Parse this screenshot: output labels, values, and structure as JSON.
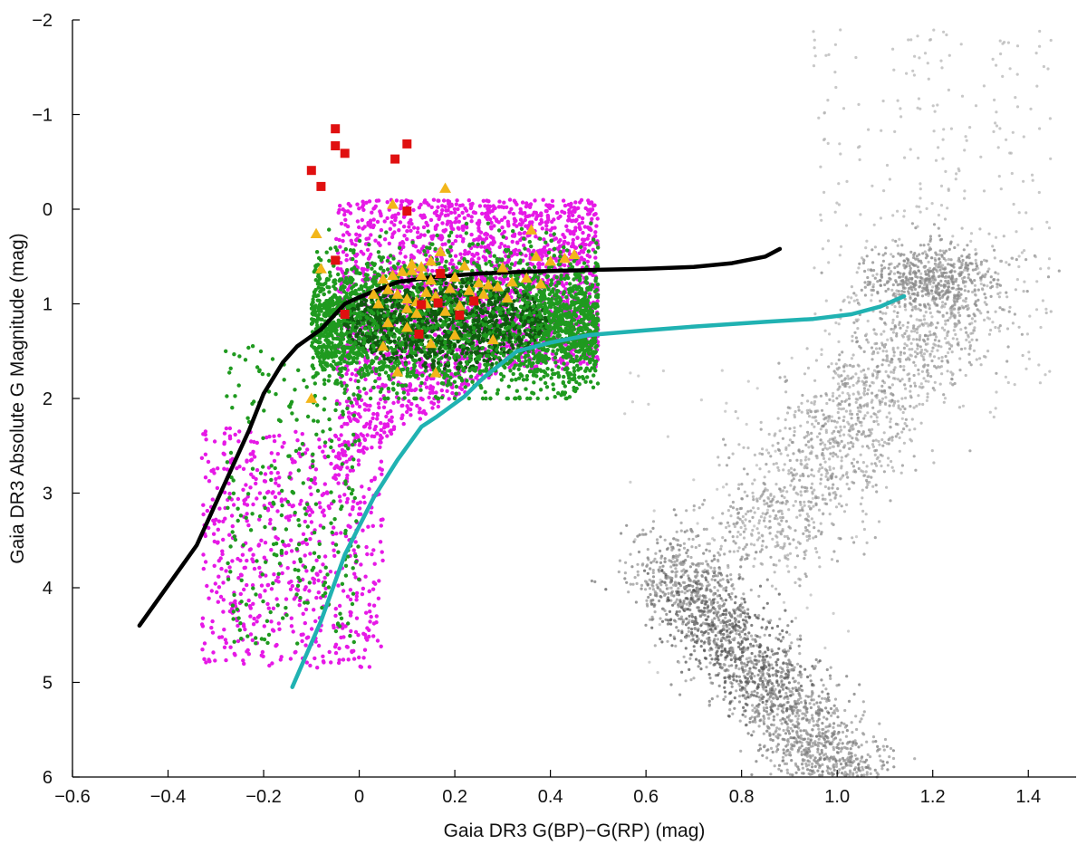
{
  "chart_data": {
    "type": "scatter",
    "title": "",
    "xlabel": "Gaia DR3 G(BP)−G(RP) (mag)",
    "ylabel": "Gaia DR3 Absolute G Magnitude (mag)",
    "xlim": [
      -0.6,
      1.5
    ],
    "ylim": [
      -2,
      6
    ],
    "y_inverted": true,
    "grid": false,
    "legend": "none",
    "x_ticks": [
      "−0.6",
      "−0.4",
      "−0.2",
      "0",
      "0.2",
      "0.4",
      "0.6",
      "0.8",
      "1.0",
      "1.2",
      "1.4"
    ],
    "x_tick_values": [
      -0.6,
      -0.4,
      -0.2,
      0,
      0.2,
      0.4,
      0.6,
      0.8,
      1.0,
      1.2,
      1.4
    ],
    "y_ticks": [
      "−2",
      "−1",
      "0",
      "1",
      "2",
      "3",
      "4",
      "5",
      "6"
    ],
    "y_tick_values": [
      -2,
      -1,
      0,
      1,
      2,
      3,
      4,
      5,
      6
    ],
    "colors": {
      "background_stars": "#9a9a9a",
      "magenta_points": "#e619e6",
      "green_points": "#1f9a1f",
      "green_dense": "#0e5a0e",
      "triangles": "#f2b61a",
      "squares": "#e01010",
      "black_line": "#000000",
      "cyan_line": "#20b2b2"
    },
    "series": [
      {
        "marker": "square",
        "color": "#e01010",
        "x": [
          -0.05,
          -0.05,
          -0.03,
          -0.1,
          -0.08,
          0.075,
          0.1,
          0.1,
          -0.05,
          -0.03,
          0.17,
          0.13,
          0.165,
          0.24,
          0.21,
          0.125
        ],
        "y": [
          -0.85,
          -0.67,
          -0.59,
          -0.41,
          -0.24,
          -0.53,
          -0.69,
          0.02,
          0.54,
          1.11,
          0.68,
          1.01,
          0.99,
          0.97,
          1.12,
          1.32
        ]
      },
      {
        "marker": "triangle",
        "color": "#f2b61a",
        "x": [
          0.07,
          0.18,
          -0.09,
          -0.08,
          0.11,
          0.13,
          0.15,
          0.17,
          0.2,
          0.22,
          0.25,
          0.27,
          0.3,
          0.32,
          0.35,
          0.37,
          0.38,
          0.4,
          0.43,
          0.45,
          0.06,
          0.08,
          0.1,
          0.12,
          0.14,
          0.16,
          0.19,
          0.23,
          0.26,
          0.29,
          0.31,
          0.1,
          0.12,
          0.14,
          0.18,
          0.21,
          0.24,
          0.05,
          0.07,
          0.09,
          0.11,
          0.13,
          0.15,
          0.17,
          0.06,
          0.1,
          0.2,
          0.28,
          0.15,
          0.05,
          -0.1,
          0.08,
          0.36,
          0.03,
          0.04,
          0.16
        ],
        "y": [
          -0.05,
          -0.22,
          0.26,
          0.63,
          0.65,
          0.7,
          0.75,
          0.68,
          0.72,
          0.6,
          0.78,
          0.8,
          0.62,
          0.77,
          0.73,
          0.5,
          0.79,
          0.55,
          0.52,
          0.48,
          0.85,
          0.9,
          0.95,
          0.98,
          0.88,
          0.92,
          0.84,
          0.86,
          0.9,
          0.82,
          0.94,
          1.05,
          1.1,
          1.0,
          1.08,
          1.02,
          0.96,
          0.74,
          0.7,
          0.66,
          0.58,
          0.61,
          0.55,
          0.45,
          1.2,
          1.25,
          1.33,
          1.38,
          1.42,
          1.45,
          2.0,
          1.72,
          0.22,
          0.9,
          1.0,
          1.73
        ]
      },
      {
        "name": "",
        "type": "line",
        "color": "#000000",
        "x": [
          -0.46,
          -0.34,
          -0.23,
          -0.2,
          -0.16,
          -0.13,
          -0.08,
          -0.03,
          0.0,
          0.03,
          0.08,
          0.15,
          0.25,
          0.35,
          0.5,
          0.6,
          0.7,
          0.78,
          0.85,
          0.88
        ],
        "y": [
          4.4,
          3.55,
          2.33,
          1.95,
          1.62,
          1.45,
          1.27,
          1.0,
          0.93,
          0.87,
          0.77,
          0.72,
          0.68,
          0.66,
          0.64,
          0.63,
          0.61,
          0.57,
          0.5,
          0.42
        ]
      },
      {
        "name": "",
        "type": "line",
        "color": "#20b2b2",
        "x": [
          -0.14,
          -0.08,
          -0.03,
          0.03,
          0.08,
          0.13,
          0.16,
          0.22,
          0.26,
          0.33,
          0.4,
          0.48,
          0.6,
          0.7,
          0.85,
          0.95,
          1.03,
          1.09,
          1.14
        ],
        "y": [
          5.05,
          4.35,
          3.65,
          3.05,
          2.65,
          2.3,
          2.2,
          1.98,
          1.78,
          1.5,
          1.41,
          1.33,
          1.28,
          1.24,
          1.19,
          1.16,
          1.11,
          1.03,
          0.92
        ]
      }
    ]
  }
}
